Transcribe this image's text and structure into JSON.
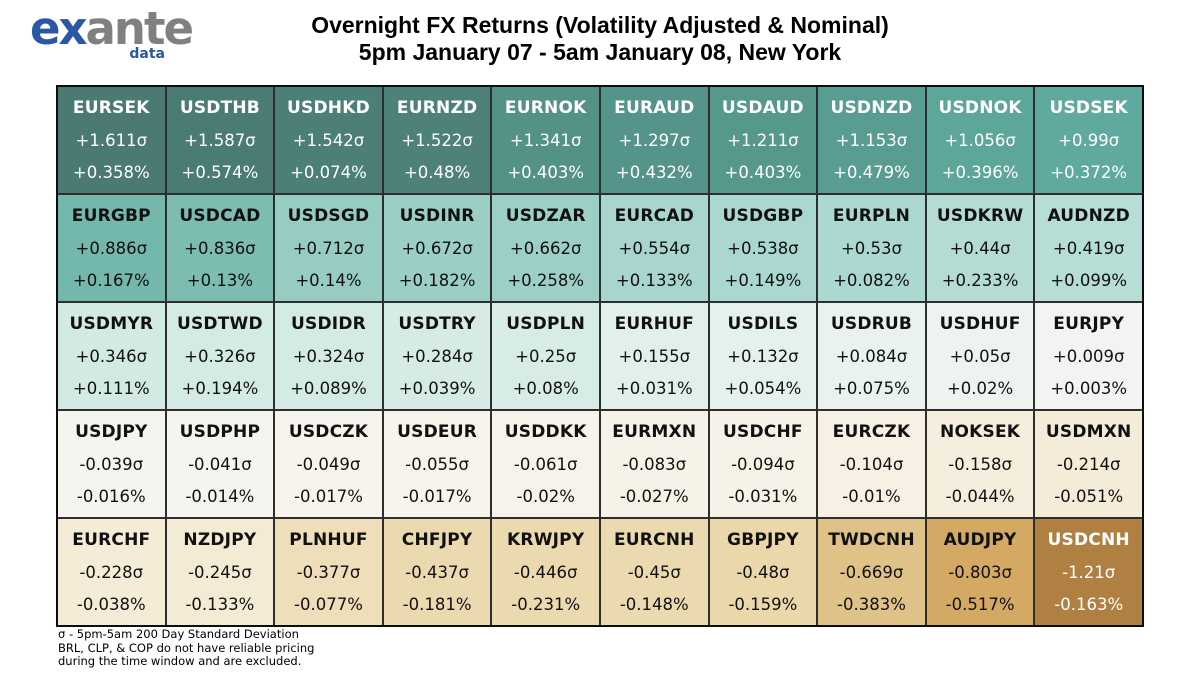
{
  "header": {
    "logo": {
      "ex": "ex",
      "ante": "ante",
      "sub": "data"
    },
    "title_line1": "Overnight FX Returns (Volatility Adjusted & Nominal)",
    "title_line2": "5pm January 07 - 5am January 08, New York"
  },
  "chart_data": {
    "type": "heatmap",
    "title": "Overnight FX Returns (Volatility Adjusted & Nominal)",
    "subtitle": "5pm January 07 - 5am January 08, New York",
    "value_units": [
      "sigma (200 day standard deviation of 5pm-5am move)",
      "percent return"
    ],
    "colorscale": {
      "positive_high": "#4a7a72",
      "zero": "#f6f4ee",
      "negative_high": "#b08043"
    },
    "layout": "10 columns x 5 rows, sorted descending by volatility-adjusted return",
    "rows": [
      [
        {
          "pair": "EURSEK",
          "sigma": "+1.611σ",
          "pct": "+0.358%",
          "bg": "#4a7a72",
          "fg": "#ffffff"
        },
        {
          "pair": "USDTHB",
          "sigma": "+1.587σ",
          "pct": "+0.574%",
          "bg": "#4b7c74",
          "fg": "#ffffff"
        },
        {
          "pair": "USDHKD",
          "sigma": "+1.542σ",
          "pct": "+0.074%",
          "bg": "#4c7f77",
          "fg": "#ffffff"
        },
        {
          "pair": "EURNZD",
          "sigma": "+1.522σ",
          "pct": "+0.48%",
          "bg": "#4d8179",
          "fg": "#ffffff"
        },
        {
          "pair": "EURNOK",
          "sigma": "+1.341σ",
          "pct": "+0.403%",
          "bg": "#549186",
          "fg": "#ffffff"
        },
        {
          "pair": "EURAUD",
          "sigma": "+1.297σ",
          "pct": "+0.432%",
          "bg": "#55948a",
          "fg": "#ffffff"
        },
        {
          "pair": "USDAUD",
          "sigma": "+1.211σ",
          "pct": "+0.403%",
          "bg": "#57988d",
          "fg": "#ffffff"
        },
        {
          "pair": "USDNZD",
          "sigma": "+1.153σ",
          "pct": "+0.479%",
          "bg": "#599c92",
          "fg": "#ffffff"
        },
        {
          "pair": "USDNOK",
          "sigma": "+1.056σ",
          "pct": "+0.396%",
          "bg": "#5da69a",
          "fg": "#ffffff"
        },
        {
          "pair": "USDSEK",
          "sigma": "+0.99σ",
          "pct": "+0.372%",
          "bg": "#60a99e",
          "fg": "#ffffff"
        }
      ],
      [
        {
          "pair": "EURGBP",
          "sigma": "+0.886σ",
          "pct": "+0.167%",
          "bg": "#74b7ac",
          "fg": "#111111"
        },
        {
          "pair": "USDCAD",
          "sigma": "+0.836σ",
          "pct": "+0.13%",
          "bg": "#7cbcb1",
          "fg": "#111111"
        },
        {
          "pair": "USDSGD",
          "sigma": "+0.712σ",
          "pct": "+0.14%",
          "bg": "#97ccc3",
          "fg": "#111111"
        },
        {
          "pair": "USDINR",
          "sigma": "+0.672σ",
          "pct": "+0.182%",
          "bg": "#9bcfc6",
          "fg": "#111111"
        },
        {
          "pair": "USDZAR",
          "sigma": "+0.662σ",
          "pct": "+0.258%",
          "bg": "#9cd0c7",
          "fg": "#111111"
        },
        {
          "pair": "EURCAD",
          "sigma": "+0.554σ",
          "pct": "+0.133%",
          "bg": "#a8d6ce",
          "fg": "#111111"
        },
        {
          "pair": "USDGBP",
          "sigma": "+0.538σ",
          "pct": "+0.149%",
          "bg": "#aad7d0",
          "fg": "#111111"
        },
        {
          "pair": "EURPLN",
          "sigma": "+0.53σ",
          "pct": "+0.082%",
          "bg": "#abd8d0",
          "fg": "#111111"
        },
        {
          "pair": "USDKRW",
          "sigma": "+0.44σ",
          "pct": "+0.233%",
          "bg": "#b4dcd5",
          "fg": "#111111"
        },
        {
          "pair": "AUDNZD",
          "sigma": "+0.419σ",
          "pct": "+0.099%",
          "bg": "#b6ded6",
          "fg": "#111111"
        }
      ],
      [
        {
          "pair": "USDMYR",
          "sigma": "+0.346σ",
          "pct": "+0.111%",
          "bg": "#d2e9e4",
          "fg": "#111111"
        },
        {
          "pair": "USDTWD",
          "sigma": "+0.326σ",
          "pct": "+0.194%",
          "bg": "#d3eae5",
          "fg": "#111111"
        },
        {
          "pair": "USDIDR",
          "sigma": "+0.324σ",
          "pct": "+0.089%",
          "bg": "#d3eae5",
          "fg": "#111111"
        },
        {
          "pair": "USDTRY",
          "sigma": "+0.284σ",
          "pct": "+0.039%",
          "bg": "#d6ebe6",
          "fg": "#111111"
        },
        {
          "pair": "USDPLN",
          "sigma": "+0.25σ",
          "pct": "+0.08%",
          "bg": "#d8ece7",
          "fg": "#111111"
        },
        {
          "pair": "EURHUF",
          "sigma": "+0.155σ",
          "pct": "+0.031%",
          "bg": "#e2f0ec",
          "fg": "#111111"
        },
        {
          "pair": "USDILS",
          "sigma": "+0.132σ",
          "pct": "+0.054%",
          "bg": "#e4f1ed",
          "fg": "#111111"
        },
        {
          "pair": "USDRUB",
          "sigma": "+0.084σ",
          "pct": "+0.075%",
          "bg": "#e9f2ef",
          "fg": "#111111"
        },
        {
          "pair": "USDHUF",
          "sigma": "+0.05σ",
          "pct": "+0.02%",
          "bg": "#eef3f0",
          "fg": "#111111"
        },
        {
          "pair": "EURJPY",
          "sigma": "+0.009σ",
          "pct": "+0.003%",
          "bg": "#f3f4f2",
          "fg": "#111111"
        }
      ],
      [
        {
          "pair": "USDJPY",
          "sigma": "-0.039σ",
          "pct": "-0.016%",
          "bg": "#f6f4ee",
          "fg": "#111111"
        },
        {
          "pair": "USDPHP",
          "sigma": "-0.041σ",
          "pct": "-0.014%",
          "bg": "#f6f4ee",
          "fg": "#111111"
        },
        {
          "pair": "USDCZK",
          "sigma": "-0.049σ",
          "pct": "-0.017%",
          "bg": "#f6f4ed",
          "fg": "#111111"
        },
        {
          "pair": "USDEUR",
          "sigma": "-0.055σ",
          "pct": "-0.017%",
          "bg": "#f7f4ec",
          "fg": "#111111"
        },
        {
          "pair": "USDDKK",
          "sigma": "-0.061σ",
          "pct": "-0.02%",
          "bg": "#f7f3eb",
          "fg": "#111111"
        },
        {
          "pair": "EURMXN",
          "sigma": "-0.083σ",
          "pct": "-0.027%",
          "bg": "#f7f2e8",
          "fg": "#111111"
        },
        {
          "pair": "USDCHF",
          "sigma": "-0.094σ",
          "pct": "-0.031%",
          "bg": "#f7f2e7",
          "fg": "#111111"
        },
        {
          "pair": "EURCZK",
          "sigma": "-0.104σ",
          "pct": "-0.01%",
          "bg": "#f7f1e5",
          "fg": "#111111"
        },
        {
          "pair": "NOKSEK",
          "sigma": "-0.158σ",
          "pct": "-0.044%",
          "bg": "#f6eedd",
          "fg": "#111111"
        },
        {
          "pair": "USDMXN",
          "sigma": "-0.214σ",
          "pct": "-0.051%",
          "bg": "#f4ecd8",
          "fg": "#111111"
        }
      ],
      [
        {
          "pair": "EURCHF",
          "sigma": "-0.228σ",
          "pct": "-0.038%",
          "bg": "#f4ecd6",
          "fg": "#111111"
        },
        {
          "pair": "NZDJPY",
          "sigma": "-0.245σ",
          "pct": "-0.133%",
          "bg": "#f3ebd3",
          "fg": "#111111"
        },
        {
          "pair": "PLNHUF",
          "sigma": "-0.377σ",
          "pct": "-0.077%",
          "bg": "#eedfba",
          "fg": "#111111"
        },
        {
          "pair": "CHFJPY",
          "sigma": "-0.437σ",
          "pct": "-0.181%",
          "bg": "#ebdab0",
          "fg": "#111111"
        },
        {
          "pair": "KRWJPY",
          "sigma": "-0.446σ",
          "pct": "-0.231%",
          "bg": "#ebdaaf",
          "fg": "#111111"
        },
        {
          "pair": "EURCNH",
          "sigma": "-0.45σ",
          "pct": "-0.148%",
          "bg": "#ebdaaf",
          "fg": "#111111"
        },
        {
          "pair": "GBPJPY",
          "sigma": "-0.48σ",
          "pct": "-0.159%",
          "bg": "#ead8ab",
          "fg": "#111111"
        },
        {
          "pair": "TWDCNH",
          "sigma": "-0.669σ",
          "pct": "-0.383%",
          "bg": "#dfc288",
          "fg": "#111111"
        },
        {
          "pair": "AUDJPY",
          "sigma": "-0.803σ",
          "pct": "-0.517%",
          "bg": "#d3a964",
          "fg": "#111111"
        },
        {
          "pair": "USDCNH",
          "sigma": "-1.21σ",
          "pct": "-0.163%",
          "bg": "#b08043",
          "fg": "#ffffff"
        }
      ]
    ]
  },
  "footer": {
    "line1": "σ - 5pm-5am 200 Day Standard Deviation",
    "line2": "BRL, CLP, & COP do not have reliable pricing",
    "line3": "during the time window and are excluded."
  },
  "colors": {
    "logo_blue": "#2b57a5",
    "logo_gray": "#808080",
    "grid_line": "#2e2e2e",
    "grid_border": "#0d0d0d"
  }
}
